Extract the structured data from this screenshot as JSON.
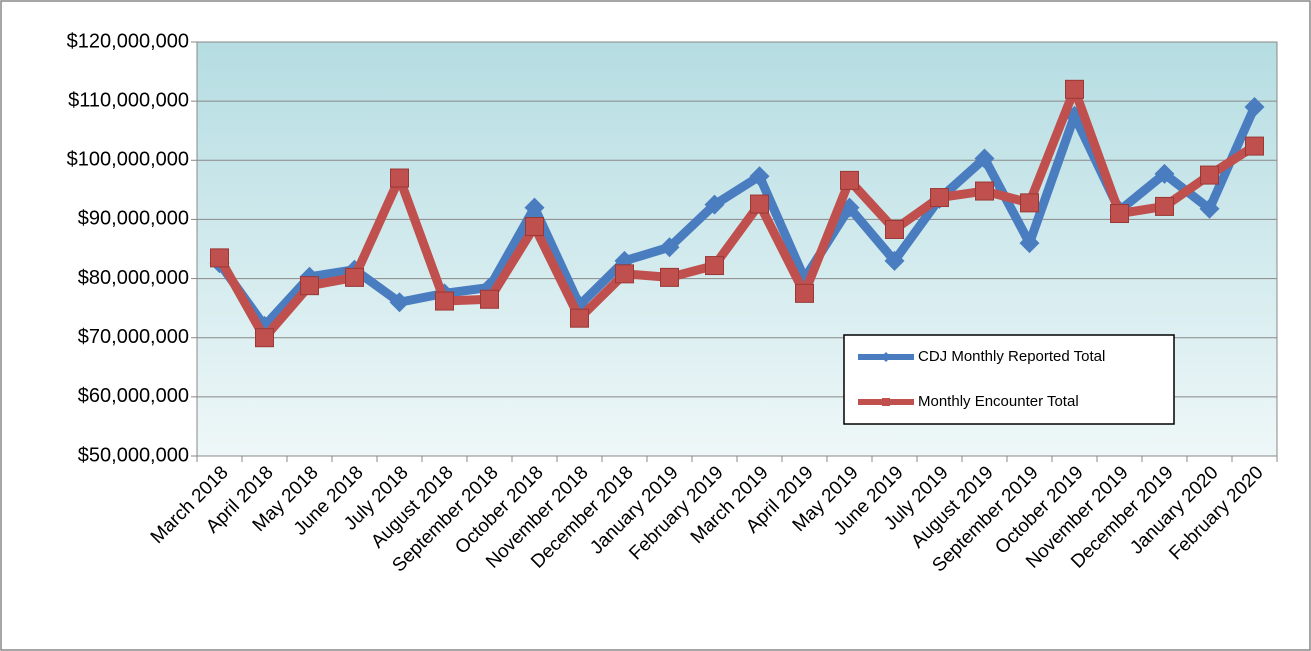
{
  "chart_data": {
    "type": "line",
    "categories": [
      "March 2018",
      "April 2018",
      "May 2018",
      "June 2018",
      "July 2018",
      "August 2018",
      "September 2018",
      "October 2018",
      "November 2018",
      "December 2018",
      "January 2019",
      "February 2019",
      "March 2019",
      "April 2019",
      "May 2019",
      "June 2019",
      "July 2019",
      "August 2019",
      "September 2019",
      "October 2019",
      "November 2019",
      "December 2019",
      "January 2020",
      "February 2020"
    ],
    "series": [
      {
        "name": "CDJ Monthly Reported Total",
        "color": "#4a7cc0",
        "marker": "diamond",
        "values": [
          82600000,
          72000000,
          80300000,
          81500000,
          76000000,
          77500000,
          78500000,
          92000000,
          75500000,
          83000000,
          85300000,
          92500000,
          97300000,
          80000000,
          92000000,
          83000000,
          93500000,
          100300000,
          86000000,
          107500000,
          91500000,
          97700000,
          91800000,
          109000000
        ]
      },
      {
        "name": "Monthly Encounter Total",
        "color": "#c0504d",
        "marker": "square",
        "values": [
          83500000,
          70000000,
          78800000,
          80200000,
          97000000,
          76200000,
          76500000,
          88800000,
          73300000,
          80800000,
          80200000,
          82200000,
          92600000,
          77500000,
          96600000,
          88300000,
          93700000,
          94800000,
          92800000,
          112000000,
          91000000,
          92200000,
          97500000,
          102400000
        ]
      }
    ],
    "ylim": [
      50000000,
      120000000
    ],
    "yticks": [
      {
        "value": 50000000,
        "label": "$50,000,000"
      },
      {
        "value": 60000000,
        "label": "$60,000,000"
      },
      {
        "value": 70000000,
        "label": "$70,000,000"
      },
      {
        "value": 80000000,
        "label": "$80,000,000"
      },
      {
        "value": 90000000,
        "label": "$90,000,000"
      },
      {
        "value": 100000000,
        "label": "$100,000,000"
      },
      {
        "value": 110000000,
        "label": "$110,000,000"
      },
      {
        "value": 120000000,
        "label": "$120,000,000"
      }
    ],
    "grid": true,
    "legend": "lower-right"
  }
}
